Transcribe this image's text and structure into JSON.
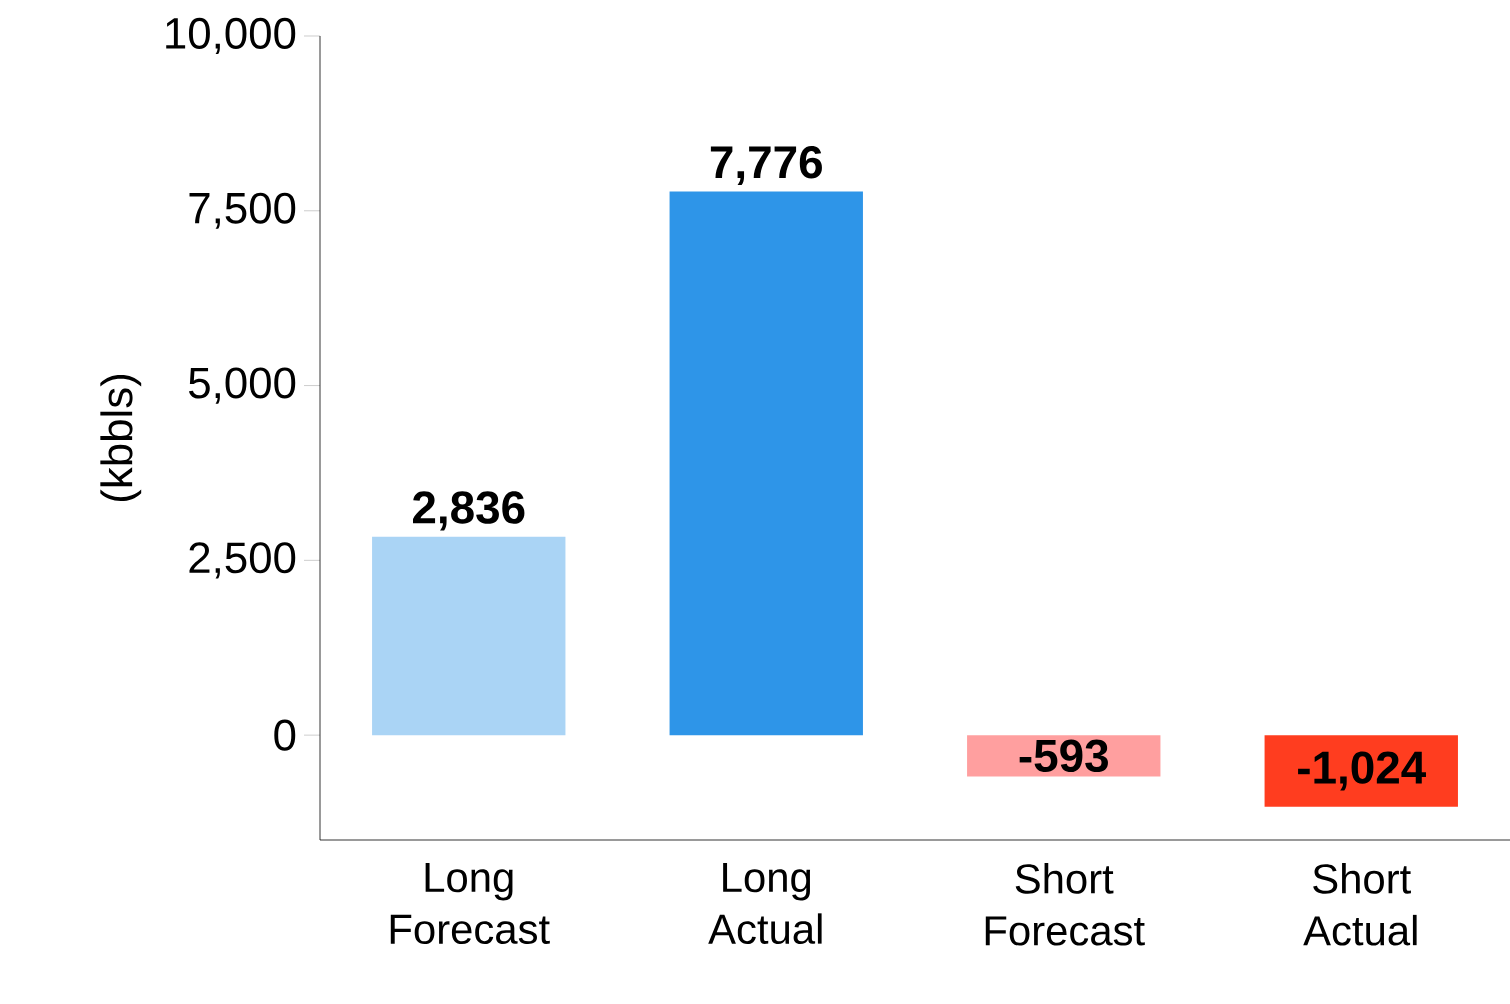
{
  "chart_data": {
    "type": "bar",
    "ylabel": "(kbbls)",
    "categories": [
      "Long Forecast",
      "Long Actual",
      "Short Forecast",
      "Short Actual"
    ],
    "values": [
      2836,
      7776,
      -593,
      -1024
    ],
    "value_labels": [
      "2,836",
      "7,776",
      "-593",
      "-1,024"
    ],
    "colors": [
      "#aad4f5",
      "#2e95e8",
      "#ff9f9f",
      "#ff3d1f"
    ],
    "ylim": [
      -1500,
      10000
    ],
    "yticks": [
      0,
      {
        "value": 2500,
        "label": "2,500"
      },
      {
        "value": 5000,
        "label": "5,000"
      },
      {
        "value": 7500,
        "label": "7,500"
      },
      {
        "value": 10000,
        "label": "10,000"
      }
    ],
    "grid": false
  }
}
